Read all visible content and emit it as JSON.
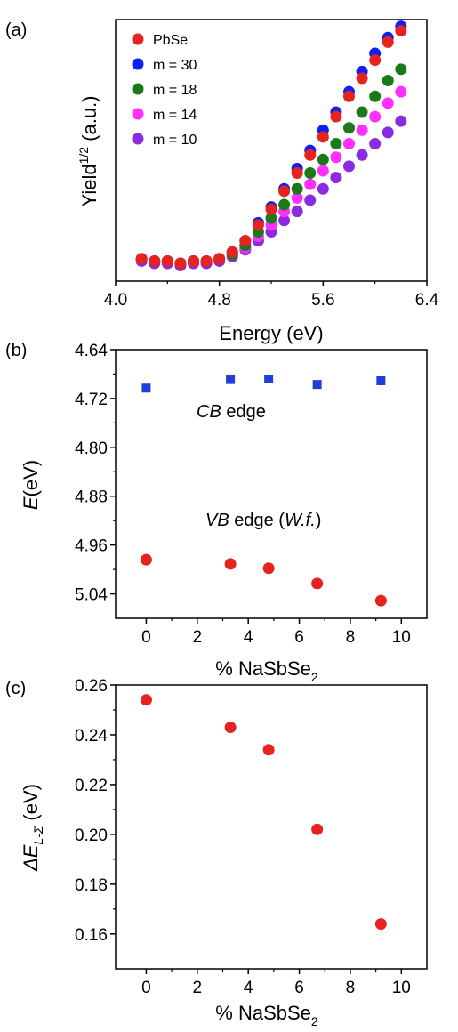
{
  "chart_data": [
    {
      "type": "scatter",
      "panel": "(a)",
      "xlabel": "Energy (eV)",
      "ylabel": {
        "base": "Yield",
        "sup": "1/2",
        "unit": " (a.u.)"
      },
      "xlim": [
        4.0,
        6.4
      ],
      "xticks": [
        "4.0",
        "4.8",
        "5.6",
        "6.4"
      ],
      "ylim": [
        0,
        1.08
      ],
      "yticks_shown": false,
      "legend_position": "top-left",
      "x": [
        4.2,
        4.3,
        4.4,
        4.5,
        4.6,
        4.7,
        4.8,
        4.9,
        5.0,
        5.1,
        5.2,
        5.3,
        5.4,
        5.5,
        5.6,
        5.7,
        5.8,
        5.9,
        6.0,
        6.1,
        6.2
      ],
      "series": [
        {
          "name": "PbSe",
          "color": "#e8231f",
          "values": [
            0.02,
            0.01,
            0.01,
            0.0,
            0.01,
            0.01,
            0.02,
            0.05,
            0.1,
            0.17,
            0.24,
            0.32,
            0.4,
            0.48,
            0.56,
            0.65,
            0.74,
            0.82,
            0.9,
            0.98,
            1.03
          ]
        },
        {
          "name": "m = 30",
          "color": "#1020f0",
          "values": [
            0.02,
            0.01,
            0.01,
            0.0,
            0.01,
            0.01,
            0.02,
            0.05,
            0.1,
            0.18,
            0.25,
            0.33,
            0.42,
            0.5,
            0.59,
            0.67,
            0.76,
            0.85,
            0.93,
            1.0,
            1.05
          ]
        },
        {
          "name": "m = 18",
          "color": "#1a7a1a",
          "values": [
            0.02,
            0.01,
            0.01,
            0.0,
            0.01,
            0.01,
            0.02,
            0.04,
            0.08,
            0.14,
            0.2,
            0.26,
            0.33,
            0.4,
            0.46,
            0.53,
            0.6,
            0.67,
            0.74,
            0.81,
            0.86
          ]
        },
        {
          "name": "m = 14",
          "color": "#ff30ff",
          "values": [
            0.02,
            0.01,
            0.01,
            0.0,
            0.01,
            0.01,
            0.02,
            0.04,
            0.07,
            0.12,
            0.17,
            0.23,
            0.29,
            0.35,
            0.41,
            0.47,
            0.53,
            0.59,
            0.65,
            0.71,
            0.76
          ]
        },
        {
          "name": "m = 10",
          "color": "#8a2be2",
          "values": [
            0.01,
            0.0,
            0.0,
            -0.01,
            0.0,
            0.0,
            0.01,
            0.03,
            0.06,
            0.1,
            0.14,
            0.19,
            0.23,
            0.28,
            0.33,
            0.38,
            0.43,
            0.48,
            0.53,
            0.58,
            0.63
          ]
        }
      ]
    },
    {
      "type": "scatter",
      "panel": "(b)",
      "xlabel": "% NaSbSe",
      "xlabel_sub": "2",
      "ylabel": "E",
      "ylabel_unit": "(eV)",
      "xlim": [
        -1.2,
        11.0
      ],
      "xticks": [
        "0",
        "2",
        "4",
        "6",
        "8",
        "10"
      ],
      "ylim": [
        5.08,
        4.64
      ],
      "y_reversed": true,
      "yticks": [
        "4.64",
        "4.72",
        "4.80",
        "4.88",
        "4.96",
        "5.04"
      ],
      "annotations": {
        "cb": {
          "italic": "CB",
          "text": " edge"
        },
        "vb": {
          "italic": "VB",
          "text": " edge (",
          "italic2": "W.f.",
          "text2": ")"
        }
      },
      "series": [
        {
          "name": "CB edge",
          "color": "#1f3fdb",
          "marker": "square",
          "x": [
            0,
            3.3,
            4.8,
            6.7,
            9.2
          ],
          "y": [
            4.703,
            4.689,
            4.688,
            4.697,
            4.691
          ]
        },
        {
          "name": "VB edge (W.f.)",
          "color": "#e8231f",
          "marker": "circle",
          "x": [
            0,
            3.3,
            4.8,
            6.7,
            9.2
          ],
          "y": [
            4.984,
            4.991,
            4.998,
            5.023,
            5.051
          ]
        }
      ]
    },
    {
      "type": "scatter",
      "panel": "(c)",
      "xlabel": "% NaSbSe",
      "xlabel_sub": "2",
      "ylabel": "ΔE",
      "ylabel_sub": "L-Σ",
      "ylabel_unit": " (eV)",
      "xlim": [
        -1.2,
        11.0
      ],
      "xticks": [
        "0",
        "2",
        "4",
        "6",
        "8",
        "10"
      ],
      "ylim": [
        0.146,
        0.26
      ],
      "yticks": [
        "0.16",
        "0.18",
        "0.20",
        "0.22",
        "0.24",
        "0.26"
      ],
      "series": [
        {
          "color": "#e8231f",
          "marker": "circle",
          "x": [
            0,
            3.3,
            4.8,
            6.7,
            9.2
          ],
          "y": [
            0.254,
            0.243,
            0.234,
            0.202,
            0.164
          ]
        }
      ]
    }
  ]
}
